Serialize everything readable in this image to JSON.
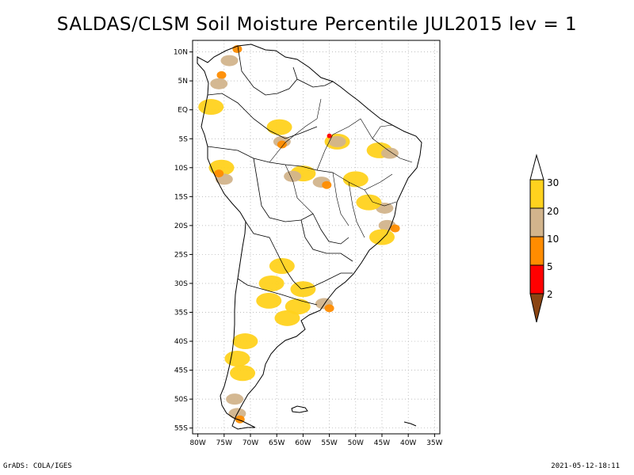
{
  "title": "SALDAS/CLSM Soil Moisture Percentile JUL2015 lev = 1",
  "footer": {
    "left": "GrADS: COLA/IGES",
    "right": "2021-05-12-18:11"
  },
  "axes": {
    "lat_labels": [
      "10N",
      "5N",
      "EQ",
      "5S",
      "10S",
      "15S",
      "20S",
      "25S",
      "30S",
      "35S",
      "40S",
      "45S",
      "50S",
      "55S"
    ],
    "lon_labels": [
      "80W",
      "75W",
      "70W",
      "65W",
      "60W",
      "55W",
      "50W",
      "45W",
      "40W",
      "35W"
    ],
    "lat_range": [
      -56,
      12
    ],
    "lon_range": [
      -81,
      -34
    ]
  },
  "colorbar": {
    "labels": [
      "30",
      "20",
      "10",
      "5",
      "2"
    ],
    "colors": {
      "above_30": "#ffffff",
      "20_30": "#ffd21e",
      "10_20": "#d2b48c",
      "5_10": "#ff8c00",
      "2_5": "#ff0000",
      "below_2": "#8b4513"
    }
  },
  "dry_regions": [
    {
      "lat": 8.5,
      "lon": -74.0,
      "level": "10_20"
    },
    {
      "lat": 6.0,
      "lon": -75.5,
      "level": "5_10"
    },
    {
      "lat": 4.5,
      "lon": -76.0,
      "level": "10_20"
    },
    {
      "lat": 10.5,
      "lon": -72.5,
      "level": "5_10"
    },
    {
      "lat": 0.5,
      "lon": -77.5,
      "level": "20_30"
    },
    {
      "lat": -3.0,
      "lon": -64.5,
      "level": "20_30"
    },
    {
      "lat": -5.5,
      "lon": -64.0,
      "level": "10_20"
    },
    {
      "lat": -6.0,
      "lon": -64.0,
      "level": "5_10"
    },
    {
      "lat": -5.5,
      "lon": -53.5,
      "level": "20_30"
    },
    {
      "lat": -5.5,
      "lon": -53.5,
      "level": "10_20"
    },
    {
      "lat": -4.5,
      "lon": -55.0,
      "level": "2_5"
    },
    {
      "lat": -7.0,
      "lon": -45.5,
      "level": "20_30"
    },
    {
      "lat": -7.5,
      "lon": -43.5,
      "level": "10_20"
    },
    {
      "lat": -11.0,
      "lon": -60.0,
      "level": "20_30"
    },
    {
      "lat": -11.5,
      "lon": -62.0,
      "level": "10_20"
    },
    {
      "lat": -12.5,
      "lon": -56.5,
      "level": "10_20"
    },
    {
      "lat": -13.0,
      "lon": -55.5,
      "level": "5_10"
    },
    {
      "lat": -12.0,
      "lon": -50.0,
      "level": "20_30"
    },
    {
      "lat": -10.0,
      "lon": -75.5,
      "level": "20_30"
    },
    {
      "lat": -12.0,
      "lon": -75.0,
      "level": "10_20"
    },
    {
      "lat": -11.0,
      "lon": -76.0,
      "level": "5_10"
    },
    {
      "lat": -17.0,
      "lon": -44.5,
      "level": "10_20"
    },
    {
      "lat": -20.0,
      "lon": -44.0,
      "level": "10_20"
    },
    {
      "lat": -20.5,
      "lon": -42.5,
      "level": "5_10"
    },
    {
      "lat": -16.0,
      "lon": -47.5,
      "level": "20_30"
    },
    {
      "lat": -22.0,
      "lon": -45.0,
      "level": "20_30"
    },
    {
      "lat": -27.0,
      "lon": -64.0,
      "level": "20_30"
    },
    {
      "lat": -30.0,
      "lon": -66.0,
      "level": "20_30"
    },
    {
      "lat": -33.0,
      "lon": -66.5,
      "level": "20_30"
    },
    {
      "lat": -34.0,
      "lon": -61.0,
      "level": "20_30"
    },
    {
      "lat": -31.0,
      "lon": -60.0,
      "level": "20_30"
    },
    {
      "lat": -33.5,
      "lon": -56.0,
      "level": "10_20"
    },
    {
      "lat": -34.3,
      "lon": -55.0,
      "level": "5_10"
    },
    {
      "lat": -36.0,
      "lon": -63.0,
      "level": "20_30"
    },
    {
      "lat": -40.0,
      "lon": -71.0,
      "level": "20_30"
    },
    {
      "lat": -43.0,
      "lon": -72.5,
      "level": "20_30"
    },
    {
      "lat": -45.5,
      "lon": -71.5,
      "level": "20_30"
    },
    {
      "lat": -50.0,
      "lon": -73.0,
      "level": "10_20"
    },
    {
      "lat": -52.5,
      "lon": -72.5,
      "level": "10_20"
    },
    {
      "lat": -53.5,
      "lon": -72.0,
      "level": "5_10"
    }
  ]
}
